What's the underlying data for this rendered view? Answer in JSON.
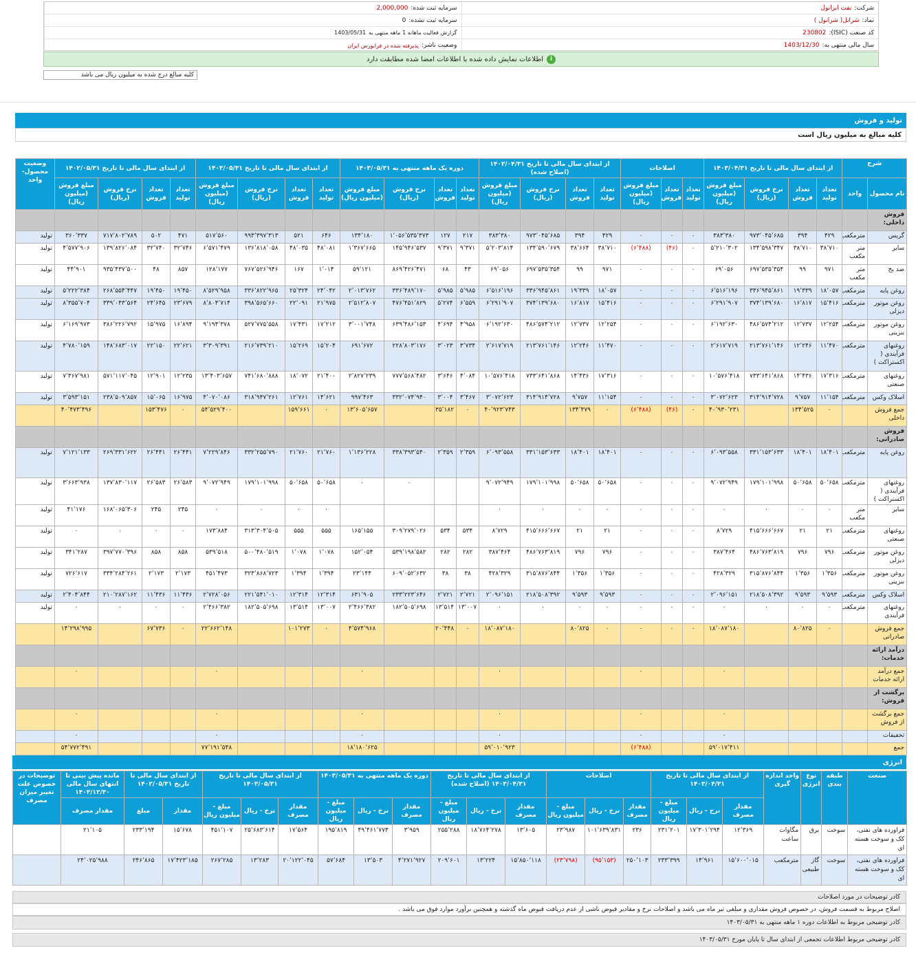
{
  "header": {
    "company_label": "شرکت:",
    "company": "نفت ایرانول",
    "capital_reg_label": "سرمایه ثبت شده:",
    "capital_reg": "2,000,000",
    "symbol_label": "نماد:",
    "symbol": "شرانل( شرانول )",
    "capital_unreg_label": "سرمایه ثبت نشده:",
    "capital_unreg": "0",
    "isic_label": "کد صنعت (ISIC):",
    "isic": "230802",
    "report_label": "گزارش فعالیت ماهانه 1 ماهه منتهی به",
    "report": "1403/05/31",
    "fy_label": "سال مالی منتهی به:",
    "fy": "1403/12/30",
    "status_label": "وضعیت ناشر:",
    "status": "پذیرفته شده در فرابورس ایران"
  },
  "banner": "اطلاعات نمایش داده شده با اطلاعات امضا شده مطابقت دارد",
  "banner_icon": "info-icon",
  "amount_note": "کلیه مبالغ درج شده به میلیون ریال می باشد",
  "production": {
    "title": "تولید و فروش",
    "subtitle": "کلیه مبالغ به میلیون ریال است",
    "group_headers": [
      "شرح",
      "از ابتدای سال مالی تا تاریخ ۱۴۰۳/۰۴/۳۱",
      "اصلاحات",
      "از ابتدای سال مالی تا تاریخ ۱۴۰۳/۰۴/۳۱ (اصلاح شده)",
      "دوره یک ماهه منتهی به ۱۴۰۳/۰۵/۳۱",
      "از ابتدای سال مالی تا تاریخ ۱۴۰۳/۰۵/۳۱",
      "از ابتدای سال مالی تا تاریخ ۱۴۰۲/۰۵/۳۱",
      "وضعیت محصول- واحد"
    ],
    "sub_headers": [
      "نام محصول",
      "واحد",
      "تعداد تولید",
      "تعداد فروش",
      "نرخ فروش (ریال)",
      "مبلغ فروش (میلیون ریال)",
      "تعداد تولید",
      "تعداد فروش",
      "مبلغ فروش (میلیون ریال)",
      "تعداد تولید",
      "تعداد فروش",
      "نرخ فروش (ریال)",
      "مبلغ فروش (میلیون ریال)",
      "تعداد تولید",
      "تعداد فروش",
      "نرخ فروش (ریال)",
      "مبلغ فروش (میلیون ریال)",
      "تعداد تولید",
      "تعداد فروش",
      "نرخ فروش (ریال)",
      "مبلغ فروش (میلیون ریال)",
      "تعداد تولید",
      "تعداد فروش",
      "نرخ فروش (ریال)",
      "مبلغ فروش (میلیون ریال)"
    ],
    "rows": [
      {
        "t": "g",
        "c": [
          "فروش داخلی:"
        ]
      },
      {
        "t": "b",
        "c": [
          "گریس",
          "مترمکعب",
          "۴۲۹",
          "۳۹۴",
          "۹۷۳٬۰۴۵٬۶۸۵",
          "۳۸۳٬۳۸۰",
          "۰",
          "۰",
          "۰",
          "۴۲۹",
          "۳۹۴",
          "۹۷۳٬۰۴۵٬۶۸۵",
          "۳۸۳٬۳۸۰",
          "۲۱۷",
          "۱۲۷",
          "۱٬۰۵۶٬۵۳۵٬۳۷۳",
          "۱۳۴٬۱۸۰",
          "۶۴۶",
          "۵۲۱",
          "۹۹۳٬۳۹۷٬۳۱۳",
          "۵۱۷٬۵۶۰",
          "۴۷۱",
          "۵۰۲",
          "۷۱۷٬۸۰۲٬۷۸۹",
          "۳۶۰٬۳۳۷",
          "تولید"
        ]
      },
      {
        "t": "w",
        "c": [
          "سایر",
          "متر مکعب",
          "۳۸٬۷۱۰",
          "۳۸٬۷۱۰",
          "۱۳۴٬۵۹۸٬۳۴۷",
          "۵٬۲۱۰٬۳۰۲",
          "۰",
          "(۴۶)",
          "(۶٬۴۸۸)",
          "۳۸٬۷۱۰",
          "۳۸٬۶۶۴",
          "۱۳۴٬۵۹۰٬۶۷۹",
          "۵٬۲۰۳٬۸۱۴",
          "۹٬۳۷۱",
          "۹٬۳۷۱",
          "۱۴۵٬۹۴۶٬۵۳۷",
          "۱٬۳۶۷٬۶۶۵",
          "۴۸٬۰۸۱",
          "۴۸٬۰۳۵",
          "۱۳۶٬۸۱۸٬۰۵۸",
          "۶٬۵۷۱٬۴۷۹",
          "۳۲٬۷۴۶",
          "۳۲٬۷۴۰",
          "۱۳۹٬۸۲۶٬۰۸۴",
          "۴٬۵۷۷٬۹۰۶",
          "تولید"
        ]
      },
      {
        "t": "w",
        "c": [
          "ضد یخ",
          "متر مکعب",
          "۹۷۱",
          "۹۹",
          "۶۹۷٬۵۳۵٬۳۵۴",
          "۶۹٬۰۵۶",
          "۰",
          "۰",
          "۰",
          "۹۷۱",
          "۹۹",
          "۶۹۷٬۵۳۵٬۳۵۴",
          "۶۹٬۰۵۶",
          "۴۳",
          "۶۸",
          "۸۶۹٬۴۲۶٬۴۷۱",
          "۵۹٬۱۲۱",
          "۱٬۰۱۴",
          "۱۶۷",
          "۷۶۷٬۵۲۶٬۹۴۶",
          "۱۲۸٬۱۷۷",
          "۸۵۷",
          "۴۸",
          "۹۳۵٬۴۳۷٬۵۰۰",
          "۴۴٬۹۰۱",
          "تولید"
        ]
      },
      {
        "t": "b",
        "c": [
          "روغن پایه",
          "مترمکعب",
          "۱۸٬۰۵۷",
          "۱۹٬۳۳۹",
          "۳۳۶٬۹۴۵٬۸۶۱",
          "۶٬۵۱۶٬۱۹۶",
          "۰",
          "۰",
          "۰",
          "۱۸٬۰۵۷",
          "۱۹٬۳۳۹",
          "۳۳۶٬۹۴۵٬۸۶۱",
          "۶٬۵۱۶٬۱۹۶",
          "۵٬۹۸۵",
          "۵٬۹۸۵",
          "۳۳۶٬۴۸۹٬۱۷۰",
          "۲٬۰۱۳٬۷۶۲",
          "۲۴٬۰۴۲",
          "۲۵٬۳۲۴",
          "۳۳۶٬۸۲۲٬۹۶۵",
          "۸٬۵۲۹٬۹۵۸",
          "۱۹٬۴۵۰",
          "۱۹٬۴۵۰",
          "۲۶۸٬۵۵۴٬۴۴۷",
          "۵٬۲۲۲٬۳۸۴",
          "تولید"
        ]
      },
      {
        "t": "b",
        "c": [
          "روغن موتور دیزلی",
          "مترمکعب",
          "۱۵٬۴۱۶",
          "۱۶٬۸۱۷",
          "۳۷۴٬۱۳۹٬۶۸۰",
          "۶٬۲۹۱٬۹۰۷",
          "۰",
          "۰",
          "۰",
          "۱۵٬۴۱۶",
          "۱۶٬۸۱۷",
          "۳۷۴٬۱۳۹٬۶۸۰",
          "۶٬۲۹۱٬۹۰۷",
          "۶٬۵۵۹",
          "۵٬۲۷۴",
          "۴۷۶٬۴۵۱٬۸۲۹",
          "۲٬۵۱۲٬۸۰۷",
          "۲۱٬۹۷۵",
          "۲۲٬۰۹۱",
          "۳۹۸٬۵۶۵٬۶۶۰",
          "۸٬۸۰۴٬۷۱۴",
          "۲۳٬۶۷۹",
          "۲۴٬۶۴۵",
          "۳۳۹٬۰۴۳٬۵۶۴",
          "۸٬۳۵۵٬۷۰۴",
          "تولید"
        ]
      },
      {
        "t": "w",
        "c": [
          "روغن موتور بنزینی",
          "مترمکعب",
          "۱۲٬۲۵۴",
          "۱۲٬۷۳۷",
          "۴۸۶٬۵۷۴٬۲۱۲",
          "۶٬۱۹۲٬۶۳۰",
          "۰",
          "۰",
          "۰",
          "۱۲٬۲۵۴",
          "۱۲٬۷۳۷",
          "۴۸۶٬۵۷۴٬۲۱۲",
          "۶٬۱۹۲٬۶۳۰",
          "۴٬۹۵۸",
          "۴٬۶۹۴",
          "۶۳۹٬۴۸۶٬۱۵۳",
          "۳٬۰۰۱٬۷۴۸",
          "۱۷٬۲۱۲",
          "۱۷٬۴۳۱",
          "۵۲۷٬۷۷۵٬۵۵۸",
          "۹٬۱۹۴٬۳۷۸",
          "۱۶٬۸۹۴",
          "۱۵٬۹۷۵",
          "۳۸۶٬۲۲۶٬۷۹۲",
          "۶٬۱۶۹٬۹۷۳",
          "تولید"
        ]
      },
      {
        "t": "b",
        "c": [
          "روغنهای فرآیندی ( اکستراکت )",
          "مترمکعب",
          "۱۱٬۴۷۰",
          "۱۲٬۲۴۶",
          "۲۱۳٬۷۶۱٬۱۴۶",
          "۲٬۶۱۷٬۷۱۹",
          "۰",
          "۰",
          "۰",
          "۱۱٬۴۷۰",
          "۱۲٬۲۴۶",
          "۲۱۳٬۷۶۱٬۱۴۶",
          "۲٬۶۱۷٬۷۱۹",
          "۳٬۷۳۴",
          "۳٬۰۲۳",
          "۲۲۸٬۸۰۳٬۱۷۶",
          "۶۹۱٬۶۷۲",
          "۱۵٬۲۰۴",
          "۱۵٬۲۶۹",
          "۲۱۶٬۷۳۹٬۲۱۰",
          "۳٬۳۰۹٬۳۹۱",
          "۲۲٬۶۲۱",
          "۲۲٬۱۵۰",
          "۱۴۸٬۶۸۳٬۰۱۷",
          "۴٬۷۸۰٬۱۵۹",
          "تولید"
        ]
      },
      {
        "t": "w",
        "c": [
          "روغنهای صنعتی",
          "مترمکعب",
          "۱۷٬۳۱۶",
          "۱۴٬۴۳۶",
          "۷۳۳٬۶۴۱٬۸۶۸",
          "۱۰٬۵۷۶٬۴۱۸",
          "۰",
          "۰",
          "۰",
          "۱۷٬۳۱۶",
          "۱۴٬۴۳۶",
          "۷۳۳٬۶۴۱٬۸۶۸",
          "۱۰٬۵۷۶٬۴۱۸",
          "۴٬۰۸۴",
          "۳٬۶۴۶",
          "۷۷۷٬۵۶۸٬۴۸۲",
          "۲٬۸۲۷٬۲۳۹",
          "۲۱٬۴۰۰",
          "۱۸٬۰۷۲",
          "۷۴۱٬۶۸۰٬۸۸۸",
          "۱۳٬۴۰۳٬۶۵۷",
          "۱۲٬۲۳۵",
          "۱۲٬۹۰۱",
          "۵۷۱٬۱۱۷٬۰۴۵",
          "۷٬۳۶۷٬۹۸۱",
          "تولید"
        ]
      },
      {
        "t": "b",
        "c": [
          "اسلاک وکس",
          "مترمکعب",
          "۱۱٬۱۵۴",
          "۹٬۷۵۷",
          "۳۱۴٬۹۱۴٬۷۲۸",
          "۳٬۰۷۲٬۶۲۳",
          "۰",
          "۰",
          "۰",
          "۱۱٬۱۵۴",
          "۹٬۷۵۷",
          "۳۱۴٬۹۱۴٬۷۲۸",
          "۳٬۰۷۲٬۶۲۳",
          "۳٬۴۶۷",
          "۳٬۰۰۴",
          "۳۳۲٬۰۷۴٬۹۴۰",
          "۹۹۷٬۴۶۳",
          "۱۴٬۶۲۱",
          "۱۲٬۷۶۱",
          "۳۱۸٬۹۴۷٬۲۶۱",
          "۴٬۰۷۰٬۰۸۶",
          "۱۶٬۹۷۵",
          "۱۵٬۰۶۵",
          "۲۳۸٬۵۰۹٬۸۵۷",
          "۳٬۵۹۳٬۱۵۱",
          "تولید"
        ]
      },
      {
        "t": "y",
        "c": [
          "جمع فروش داخلی",
          "",
          "۰",
          "۱۳۴٬۵۲۵",
          "",
          "۴۰٬۹۳۰٬۲۳۱",
          "۰",
          "(۴۶)",
          "(۶٬۴۸۸)",
          "۰",
          "۱۳۴٬۴۷۹",
          "",
          "۴۰٬۹۲۳٬۷۴۳",
          "۰",
          "۳۵٬۱۸۲",
          "",
          "۱۳٬۶۰۵٬۶۵۷",
          "۰",
          "۱۵۹٬۶۶۱",
          "",
          "۵۴٬۵۲۹٬۴۰۰",
          "۰",
          "۱۵۳٬۴۷۶",
          "",
          "۴۰٬۴۷۳٬۴۹۶",
          ""
        ]
      },
      {
        "t": "g",
        "c": [
          "فروش صادراتی:"
        ]
      },
      {
        "t": "b",
        "c": [
          "روغن پایه",
          "مترمکعب",
          "۱۸٬۴۰۱",
          "۱۸٬۴۰۱",
          "۳۳۱٬۱۵۳٬۶۳۳",
          "۶٬۰۹۳٬۵۵۸",
          "۰",
          "۰",
          "۰",
          "۱۸٬۴۰۱",
          "۱۸٬۴۰۱",
          "۳۳۱٬۱۵۳٬۶۳۳",
          "۶٬۰۹۳٬۵۵۸",
          "۲٬۳۵۹",
          "۲٬۳۵۹",
          "۳۳۸٬۳۹۳٬۵۴۰",
          "۱٬۱۳۶٬۲۲۸",
          "۲۱٬۷۶۰",
          "۲۱٬۷۶۰",
          "۳۳۲٬۲۵۵٬۷۹۰",
          "۷٬۲۲۹٬۸۴۶",
          "۲۶٬۴۴۱",
          "۲۶٬۴۴۱",
          "۲۶۹٬۳۳۱٬۶۲۲",
          "۷٬۱۲۱٬۱۳۳",
          "تولید"
        ]
      },
      {
        "t": "w",
        "c": [
          "روغنهای فرآیندی ( اکستراکت )",
          "مترمکعب",
          "۵۰٬۶۵۸",
          "۵۰٬۶۵۸",
          "۱۷۹٬۱۰۱٬۹۹۸",
          "۹٬۰۷۲٬۹۴۹",
          "۰",
          "۰",
          "۰",
          "۵۰٬۶۵۸",
          "۵۰٬۶۵۸",
          "۱۷۹٬۱۰۱٬۹۹۸",
          "۹٬۰۷۲٬۹۴۹",
          "",
          "",
          "۰",
          "۰",
          "۵۰٬۶۵۸",
          "۵۰٬۶۵۸",
          "۱۷۹٬۱۰۱٬۹۹۸",
          "۹٬۰۷۲٬۹۴۹",
          "۲۶٬۵۸۳",
          "۲۶٬۵۸۳",
          "۱۳۷٬۸۳۰٬۱۱۷",
          "۳٬۶۶۳٬۹۳۸",
          "تولید"
        ]
      },
      {
        "t": "w",
        "c": [
          "سایر",
          "متر مکعب",
          "۰",
          "۰",
          "۰",
          "۰",
          "۰",
          "۰",
          "۰",
          "۰",
          "۰",
          "۰",
          "۰",
          "",
          "",
          "",
          "",
          "۰",
          "۰",
          "۰",
          "۰",
          "۲۴۵",
          "۲۴۵",
          "۱۶۸٬۰۶۵٬۳۰۶",
          "۴۱٬۱۷۶",
          "تولید"
        ]
      },
      {
        "t": "w",
        "c": [
          "روغنهای صنعتی",
          "مترمکعب",
          "۲۱",
          "۲۱",
          "۴۱۵٬۶۶۶٬۶۶۷",
          "۸٬۷۲۹",
          "۰",
          "۰",
          "۰",
          "۲۱",
          "۲۱",
          "۴۱۵٬۶۶۶٬۶۶۷",
          "۸٬۷۲۹",
          "۵۳۴",
          "۵۳۴",
          "۳۰۹٬۲۷۹٬۰۲۶",
          "۱۶۵٬۱۵۵",
          "۵۵۵",
          "۵۵۵",
          "۳۱۳٬۳۰۴٬۵۰۵",
          "۱۷۳٬۸۸۴",
          "۰",
          "۰",
          "۰",
          "۰",
          "تولید"
        ]
      },
      {
        "t": "w",
        "c": [
          "روغن موتور دیزلی",
          "مترمکعب",
          "۷۹۶",
          "۷۹۶",
          "۴۸۶٬۷۶۳٬۸۱۹",
          "۳۸۷٬۴۶۴",
          "۰",
          "۰",
          "۰",
          "۷۹۶",
          "۷۹۶",
          "۴۸۶٬۷۶۳٬۸۱۹",
          "۳۸۷٬۴۶۴",
          "۲۸۲",
          "۲۸۲",
          "۵۳۹٬۱۹۸٬۵۸۲",
          "۱۵۲٬۰۵۴",
          "۱٬۰۷۸",
          "۱٬۰۷۸",
          "۵۰۰٬۴۸۰٬۵۱۹",
          "۵۳۹٬۵۱۸",
          "۸۵۸",
          "۸۵۸",
          "۳۹۷٬۷۷۰٬۳۹۶",
          "۳۴۱٬۲۸۷",
          "تولید"
        ]
      },
      {
        "t": "w",
        "c": [
          "روغن موتور بنزینی",
          "مترمکعب",
          "۱٬۳۵۶",
          "۱٬۳۵۶",
          "۳۱۵٬۸۷۶٬۸۴۴",
          "۴۲۸٬۳۲۹",
          "۰",
          "۰",
          "۰",
          "۱٬۳۵۶",
          "۱٬۳۵۶",
          "۳۱۵٬۸۷۶٬۸۴۴",
          "۴۲۸٬۳۲۹",
          "۳۸",
          "۳۸",
          "۶۰۹٬۰۵۲٬۶۳۲",
          "۲۳٬۱۴۴",
          "۱٬۳۹۴",
          "۱٬۳۹۴",
          "۳۲۳٬۸۶۸٬۷۲۳",
          "۴۵۱٬۴۷۳",
          "۲٬۱۷۳",
          "۲٬۱۷۳",
          "۳۳۴٬۲۸۴٬۲۶۱",
          "۷۲۶٬۶۱۷",
          "تولید"
        ]
      },
      {
        "t": "b",
        "c": [
          "اسلاک وکس",
          "مترمکعب",
          "۹٬۵۹۳",
          "۹٬۵۹۳",
          "۲۱۸٬۵۰۸٬۳۹۲",
          "۲٬۰۹۶٬۱۵۱",
          "۰",
          "۰",
          "۰",
          "۹٬۵۹۳",
          "۹٬۵۹۳",
          "۲۱۸٬۵۰۸٬۳۹۲",
          "۲٬۰۹۶٬۱۵۱",
          "۲٬۷۲۱",
          "۲٬۷۲۱",
          "۲۳۳٬۲۲۳٬۶۴۶",
          "۶۳۱٬۹۰۵",
          "۱۲٬۳۱۴",
          "۱۲٬۳۱۴",
          "۲۲۱٬۵۴۱٬۰۱۰",
          "۲٬۷۲۸٬۰۵۶",
          "۱۱٬۴۳۶",
          "۱۱٬۴۳۶",
          "۲۱۰٬۲۸۷٬۱۶۲",
          "۲٬۴۰۴٬۸۴۴",
          "تولید"
        ]
      },
      {
        "t": "w",
        "c": [
          "روغنهای فرآیندی",
          "مترمکعب",
          "۰",
          "۰",
          "۰",
          "۰",
          "۰",
          "۰",
          "۰",
          "۰",
          "۰",
          "۰",
          "۰",
          "۱۳٬۰۰۷",
          "۱۳٬۵۱۴",
          "۱۸۲٬۵۰۵٬۶۹۸",
          "۲٬۴۶۶٬۳۸۲",
          "۱۳٬۰۰۷",
          "۱۳٬۵۱۴",
          "۱۸۲٬۵۰۵٬۶۹۸",
          "۲٬۴۶۶٬۳۸۲",
          "۰",
          "۰",
          "۰",
          "۰",
          "تولید"
        ]
      },
      {
        "t": "y",
        "c": [
          "جمع فروش صادراتی",
          "",
          "۰",
          "۸۰٬۸۲۵",
          "",
          "۱۸٬۰۸۷٬۱۸۰",
          "۰",
          "۰",
          "۰",
          "۰",
          "۸۰٬۸۲۵",
          "",
          "۱۸٬۰۸۷٬۱۸۰",
          "۰",
          "۲۰٬۴۴۸",
          "",
          "۴٬۵۷۴٬۹۶۸",
          "۰",
          "۱۰۱٬۲۷۳",
          "",
          "۲۲٬۶۶۲٬۱۴۸",
          "۰",
          "۶۷٬۷۳۶",
          "",
          "۱۴٬۲۹۸٬۹۹۵",
          ""
        ]
      },
      {
        "t": "g",
        "c": [
          "درآمد ارائه خدمات:"
        ]
      },
      {
        "t": "y",
        "c": [
          "جمع درآمد ارائه خدمات",
          "",
          "",
          "",
          "",
          "۰",
          "",
          "",
          "۰",
          "",
          "",
          "",
          "۰",
          "",
          "",
          "",
          "۰",
          "",
          "",
          "",
          "۰",
          "",
          "",
          "",
          "۰",
          ""
        ]
      },
      {
        "t": "g",
        "c": [
          "برگشت از فروش:"
        ]
      },
      {
        "t": "y",
        "c": [
          "جمع برگشت از فروش",
          "",
          "",
          "",
          "",
          "۰",
          "",
          "",
          "۰",
          "",
          "",
          "",
          "۰",
          "",
          "",
          "",
          "۰",
          "",
          "",
          "",
          "۰",
          "",
          "",
          "",
          "۰",
          ""
        ]
      },
      {
        "t": "b",
        "c": [
          "تخفیفات",
          "",
          "",
          "",
          "",
          "۰",
          "",
          "",
          "۰",
          "",
          "",
          "",
          "۰",
          "",
          "",
          "",
          "۰",
          "",
          "",
          "",
          "۰",
          "",
          "",
          "",
          "۰",
          ""
        ]
      },
      {
        "t": "y",
        "c": [
          "جمع",
          "",
          "",
          "",
          "",
          "۵۹٬۰۱۷٬۴۱۱",
          "",
          "",
          "(۶٬۴۸۸)",
          "",
          "",
          "",
          "۵۹٬۰۱۰٬۹۲۳",
          "",
          "",
          "",
          "۱۸٬۱۸۰٬۶۲۵",
          "",
          "",
          "",
          "۷۷٬۱۹۱٬۵۴۸",
          "",
          "",
          "",
          "۵۴٬۷۷۲٬۴۹۱",
          ""
        ]
      }
    ]
  },
  "energy": {
    "title": "انرژی",
    "group_headers": [
      "صنعت",
      "طبقه بندی",
      "نوع انرژی",
      "واحد اندازه گیری",
      "از ابتدای سال مالی تا تاریخ ۱۴۰۳/۰۴/۳۱",
      "اصلاحات",
      "از ابتدای سال مالی تا تاریخ ۱۴۰۳/۰۴/۳۱ (اصلاح شده)",
      "دوره یک ماهه منتهی به ۱۴۰۳/۰۵/۳۱",
      "از ابتدای سال مالی تا تاریخ ۱۴۰۳/۰۵/۳۱",
      "از ابتدای سال مالی تا تاریخ ۱۴۰۲/۰۵/۳۱",
      "مانده پیش بینی تا انتهای سال مالی ۱۴۰۳/۱۲/۳۰",
      "توضیحات در خصوص علت تغییر میزان مصرف"
    ],
    "sub_headers": [
      "مقدار مصرف",
      "نرخ - ریال",
      "مبلغ - میلیون ریال",
      "مقدار مصرف",
      "نرخ - ریال",
      "مبلغ - میلیون ریال",
      "مقدار مصرف",
      "نرخ - ریال",
      "مبلغ - میلیون ریال",
      "مقدار مصرف",
      "نرخ - ریال",
      "مبلغ - میلیون ریال",
      "مقدار مصرف",
      "نرخ - ریال",
      "مبلغ - میلیون ریال",
      "مقدار",
      "مبلغ",
      "مقدار مصرف"
    ],
    "rows": [
      {
        "t": "w",
        "c": [
          "فراورده های نفتی، کک و سوخت هسته ای",
          "سوخت",
          "برق",
          "مگاوات ساعت",
          "۱۲٬۳۶۹",
          "۱۷٬۳۰۱٬۲۹۴",
          "۲۳۱٬۲۰۱",
          "۲۳۶",
          "۱۰۱٬۶۳۹٬۸۳۱",
          "۲۳٬۹۸۷",
          "۱۳٬۶۰۵",
          "۱۸٬۷۶۴٬۲۷۸",
          "۲۵۵٬۲۸۸",
          "۳٬۹۵۹",
          "۴۹٬۴۶۱٬۷۷۳",
          "۱۹۵٬۸۱۹",
          "۱۷٬۵۶۴",
          "۲۵٬۶۸۳٬۶۱۴",
          "۴۵۱٬۱۰۷",
          "۱۵٬۶۷۸",
          "۲۳۳٬۱۹۴",
          "۲۱٬۱۰۵",
          ""
        ]
      },
      {
        "t": "b",
        "c": [
          "فراورده های نفتی، کک و سوخت هسته ای",
          "سوخت",
          "گاز طبیعی",
          "مترمکعب",
          "۱۵٬۶۰۰٬۰۱۵",
          "۱۴٬۹۶۱",
          "۲۳۳٬۳۹۹",
          "۲۵۰٬۱۰۳",
          "(۹۵٬۱۵۳)",
          "(۲۳٬۷۹۸)",
          "۱۵٬۸۵۰٬۱۱۸",
          "۱۳٬۲۲۴",
          "۲۰۹٬۶۰۱",
          "۴٬۲۷۱٬۹۲۷",
          "۱۳٬۵۰۳",
          "۵۷٬۶۸۴",
          "۲۰٬۱۲۲٬۰۴۵",
          "۱۳٬۲۸۳",
          "۲۶۷٬۲۸۵",
          "۱۷٬۴۲۳٬۱۸۵",
          "۲۴۶٬۸۶۵",
          "۲۴٬۰۲۵٬۹۸۸",
          ""
        ]
      }
    ]
  },
  "notes": [
    "کادر توضیحات در مورد اصلاحات",
    "اصلاح مربوط به قسمت فروش، در خصوص فروش مقداری و مبلغی تیر ماه می باشد و اصلاحات نرخ و مقادیر قبوض ناشی از عدم دریافت قبوض ماه گذشته و همچنین برآورد موارد فوق می باشد .",
    "کادر توضیحی مربوط به اطلاعات دوره ۱ ماهه منتهی به ۱۴۰۳/۰۵/۳۱",
    "کادر توضیحی مربوط اطلاعات تجمعی از ابتدای سال تا پایان مورخ ۱۴۰۳/۰۵/۳۱"
  ]
}
